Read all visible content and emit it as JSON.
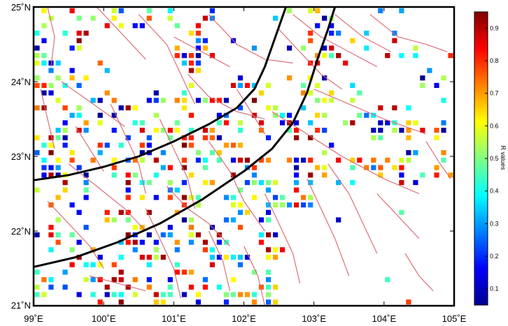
{
  "map": {
    "lon_range": [
      99,
      105
    ],
    "lat_range": [
      21,
      25
    ],
    "x_ticks": [
      {
        "value": 99,
        "label": "99˚E"
      },
      {
        "value": 100,
        "label": "100˚E"
      },
      {
        "value": 101,
        "label": "101˚E"
      },
      {
        "value": 102,
        "label": "102˚E"
      },
      {
        "value": 103,
        "label": "103˚E"
      },
      {
        "value": 104,
        "label": "104˚E"
      },
      {
        "value": 105,
        "label": "105˚E"
      }
    ],
    "y_ticks": [
      {
        "value": 25,
        "label": "25˚N"
      },
      {
        "value": 24,
        "label": "24˚N"
      },
      {
        "value": 23,
        "label": "23˚N"
      },
      {
        "value": 22,
        "label": "22˚N"
      },
      {
        "value": 21,
        "label": "21˚N"
      }
    ],
    "boundary_lines": [
      {
        "name": "boundary-west",
        "points": [
          [
            99.0,
            22.68
          ],
          [
            99.5,
            22.75
          ],
          [
            100.0,
            22.86
          ],
          [
            100.5,
            23.0
          ],
          [
            101.0,
            23.2
          ],
          [
            101.5,
            23.43
          ],
          [
            101.9,
            23.65
          ],
          [
            102.15,
            23.9
          ],
          [
            102.3,
            24.2
          ],
          [
            102.45,
            24.6
          ],
          [
            102.6,
            25.0
          ]
        ]
      },
      {
        "name": "boundary-east",
        "points": [
          [
            99.0,
            21.52
          ],
          [
            99.6,
            21.65
          ],
          [
            100.2,
            21.85
          ],
          [
            100.8,
            22.1
          ],
          [
            101.4,
            22.42
          ],
          [
            102.0,
            22.8
          ],
          [
            102.4,
            23.1
          ],
          [
            102.7,
            23.45
          ],
          [
            102.9,
            23.85
          ],
          [
            103.05,
            24.3
          ],
          [
            103.2,
            24.7
          ],
          [
            103.3,
            25.0
          ]
        ]
      }
    ],
    "fault_color": "#d9646e",
    "boundary_color": "#000000"
  },
  "colorbar": {
    "title": "R values",
    "range": [
      0.05,
      0.95
    ],
    "ticks": [
      "0.1",
      "0.2",
      "0.3",
      "0.4",
      "0.5",
      "0.6",
      "0.7",
      "0.8",
      "0.9"
    ],
    "colormap": [
      "#00008f",
      "#0000ff",
      "#0080ff",
      "#00ffff",
      "#80ff80",
      "#ffff00",
      "#ff8000",
      "#ff0000",
      "#800000"
    ]
  },
  "chart_data": {
    "type": "scatter",
    "description_units": "longitude (°E), latitude (°N), R value",
    "xlim": [
      99,
      105
    ],
    "ylim": [
      21,
      25
    ],
    "grid_step": [
      0.1,
      0.1
    ],
    "grid_lon_range": [
      99.05,
      104.95
    ],
    "grid_lat_range": [
      21.05,
      24.95
    ],
    "value_range": [
      0.05,
      0.95
    ]
  }
}
